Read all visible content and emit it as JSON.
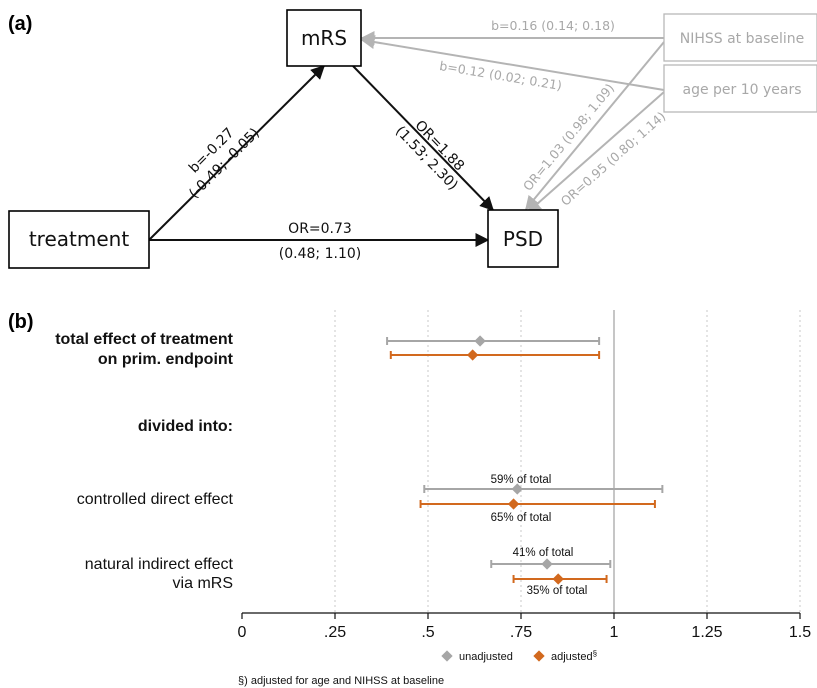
{
  "panel_a": {
    "label": "(a)",
    "nodes": {
      "mrs": "mRS",
      "treatment": "treatment",
      "psd": "PSD",
      "nihss": "NIHSS at baseline",
      "age": "age per 10 years"
    },
    "edges": {
      "treatment_mrs": {
        "line1": "b=-0.27",
        "line2": "(-0.49; -0.05)"
      },
      "mrs_psd": {
        "line1": "OR=1.88",
        "line2": "(1.53; 2.30)"
      },
      "treatment_psd": {
        "line1": "OR=0.73",
        "line2": "(0.48; 1.10)"
      },
      "nihss_mrs": "b=0.16 (0.14; 0.18)",
      "age_mrs": "b=0.12 (0.02; 0.21)",
      "nihss_psd": "OR=1.03 (0.98; 1.09)",
      "age_psd": "OR=0.95 (0.80; 1.14)"
    }
  },
  "panel_b": {
    "label": "(b)",
    "rows": {
      "total_line1": "total effect of treatment",
      "total_line2": "on prim. endpoint",
      "divided": "divided into:",
      "cde": "controlled direct effect",
      "nie_line1": "natural indirect effect",
      "nie_line2": "via mRS"
    },
    "annotations": {
      "cde_unadj": "59% of total",
      "cde_adj": "65% of total",
      "nie_unadj": "41% of total",
      "nie_adj": "35% of total"
    },
    "legend": {
      "unadjusted": "unadjusted",
      "adjusted": "adjusted",
      "adjusted_mark": "§"
    },
    "footnote": "§) adjusted for age and NIHSS at baseline",
    "colors": {
      "unadjusted": "#a6a6a6",
      "adjusted": "#d2691e"
    }
  },
  "chart_data": {
    "type": "scatter",
    "x_ticks": [
      0,
      0.25,
      0.5,
      0.75,
      1,
      1.25,
      1.5
    ],
    "x_tick_labels": [
      "0",
      ".25",
      ".5",
      ".75",
      "1",
      "1.25",
      "1.5"
    ],
    "xlim": [
      0,
      1.5
    ],
    "reference_line": 1,
    "grid": "vertical dotted",
    "categories": [
      "total effect of treatment on prim. endpoint",
      "controlled direct effect",
      "natural indirect effect via mRS"
    ],
    "series": [
      {
        "name": "unadjusted",
        "values": [
          0.64,
          0.74,
          0.82
        ],
        "lower": [
          0.39,
          0.49,
          0.67
        ],
        "upper": [
          0.96,
          1.13,
          0.99
        ]
      },
      {
        "name": "adjusted",
        "values": [
          0.62,
          0.73,
          0.85
        ],
        "lower": [
          0.4,
          0.48,
          0.73
        ],
        "upper": [
          0.96,
          1.11,
          0.98
        ]
      }
    ]
  }
}
